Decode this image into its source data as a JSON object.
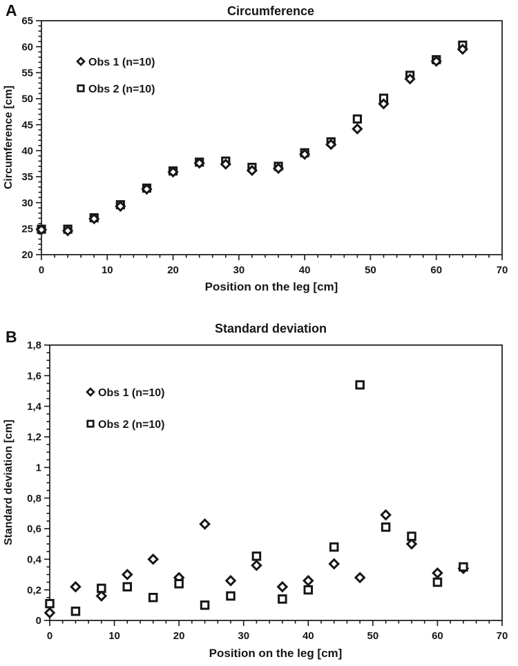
{
  "panels": [
    {
      "letter": "A"
    },
    {
      "letter": "B"
    }
  ],
  "colors": {
    "marker": "#161616",
    "axis": "#161616",
    "text": "#161616",
    "background": "#ffffff"
  },
  "chart_data": [
    {
      "type": "scatter",
      "title": "Circumference",
      "xlabel": "Position on the leg [cm]",
      "ylabel": "Circumference [cm]",
      "xlim": [
        0,
        70
      ],
      "ylim": [
        20,
        65
      ],
      "x_major_step": 10,
      "x_minor_step": 2,
      "y_major_step": 5,
      "y_minor_step": 1,
      "x_tick_labels": [
        "0",
        "10",
        "20",
        "30",
        "40",
        "50",
        "60",
        "70"
      ],
      "y_tick_labels": [
        "20",
        "25",
        "30",
        "35",
        "40",
        "45",
        "50",
        "55",
        "60",
        "65"
      ],
      "grid": false,
      "legend_position": "upper-left-inside",
      "x": [
        0,
        4,
        8,
        12,
        16,
        20,
        24,
        28,
        32,
        36,
        40,
        44,
        48,
        52,
        56,
        60,
        64
      ],
      "series": [
        {
          "name": "Obs 1 (n=10)",
          "marker": "diamond",
          "values": [
            24.8,
            24.6,
            26.9,
            29.3,
            32.6,
            35.9,
            37.6,
            37.4,
            36.2,
            36.6,
            39.3,
            41.2,
            44.2,
            49.0,
            53.8,
            57.2,
            59.5
          ]
        },
        {
          "name": "Obs 2 (n=10)",
          "marker": "square",
          "values": [
            24.9,
            24.9,
            27.1,
            29.6,
            32.8,
            36.1,
            37.8,
            38.0,
            36.8,
            37.0,
            39.6,
            41.7,
            46.1,
            50.1,
            54.5,
            57.5,
            60.3
          ]
        }
      ],
      "draw_order": [
        1,
        0
      ]
    },
    {
      "type": "scatter",
      "title": "Standard deviation",
      "xlabel": "Position on the leg [cm]",
      "ylabel": "Standard deviation [cm]",
      "xlim": [
        0,
        70
      ],
      "ylim": [
        0,
        1.8
      ],
      "x_major_step": 10,
      "x_minor_step": 2,
      "y_major_step": 0.2,
      "y_minor_step": 0.05,
      "x_tick_labels": [
        "0",
        "10",
        "20",
        "30",
        "40",
        "50",
        "60",
        "70"
      ],
      "y_tick_labels": [
        "0",
        "0,2",
        "0,4",
        "0,6",
        "0,8",
        "1",
        "1,2",
        "1,4",
        "1,6",
        "1,8"
      ],
      "grid": false,
      "legend_position": "upper-left-inside",
      "x": [
        0,
        4,
        8,
        12,
        16,
        20,
        24,
        28,
        32,
        36,
        40,
        44,
        48,
        52,
        56,
        60,
        64
      ],
      "series": [
        {
          "name": "Obs 1 (n=10)",
          "marker": "diamond",
          "values": [
            0.05,
            0.22,
            0.16,
            0.3,
            0.4,
            0.28,
            0.63,
            0.26,
            0.36,
            0.22,
            0.26,
            0.37,
            0.28,
            0.69,
            0.5,
            0.31,
            0.34
          ]
        },
        {
          "name": "Obs 2 (n=10)",
          "marker": "square",
          "values": [
            0.11,
            0.06,
            0.21,
            0.22,
            0.15,
            0.24,
            0.1,
            0.16,
            0.42,
            0.14,
            0.2,
            0.48,
            1.54,
            0.61,
            0.55,
            0.25,
            0.35
          ]
        }
      ],
      "draw_order": [
        0,
        1
      ]
    }
  ]
}
